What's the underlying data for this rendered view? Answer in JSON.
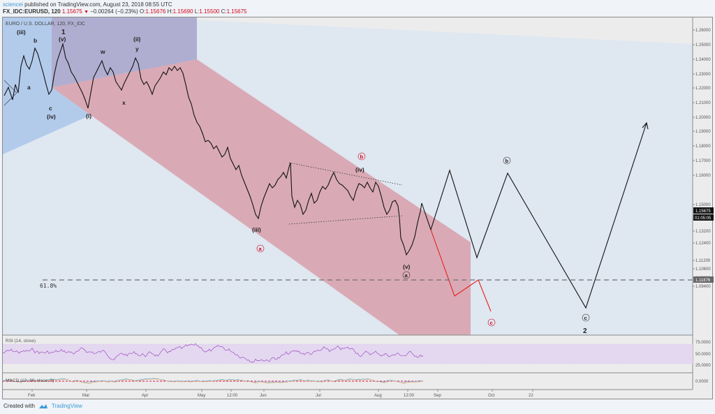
{
  "header": {
    "author": "sciencei",
    "published_text": "published on TradingView.com, August 23, 2018 08:55 UTC",
    "symbol": "FX_IDC:EURUSD, 120",
    "last": "1.15675",
    "change_icon": "triangle-down-icon",
    "change": "−0.00264 (−0.23%)",
    "o_label": "O:",
    "o": "1.15676",
    "h_label": "H:",
    "h": "1.15690",
    "l_label": "L:",
    "l": "1.15500",
    "c_label": "C:",
    "c": "1.15675"
  },
  "chart": {
    "title": "EURO / U.S. DOLLAR, 120, FX_IDC",
    "price_label": "1.15675",
    "countdown_label": "01:05:05",
    "fib_label": "1.11876",
    "fib_text": "61.8%",
    "rsi_label": "RSI (14, close)",
    "macd_label": "MACD (12, 26, close, 9)"
  },
  "footer": {
    "created_with": "Created with",
    "brand": "TradingView",
    "logo_icon": "tradingview-cloud-icon"
  },
  "colors": {
    "down": "#d0021b",
    "accent": "#3a9ad9",
    "blue_zone": "#b3cbeb",
    "red_channel": "#d9aab5",
    "rsi_band": "#e4d7f0",
    "rsi_line": "#9c4fbf",
    "projection_red": "#e8201c"
  },
  "chart_data": {
    "type": "line",
    "title": "EURO / U.S. DOLLAR, 120, FX_IDC",
    "xlabel": "",
    "ylabel": "Price",
    "ylim": [
      1.088,
      1.266
    ],
    "grid": false,
    "price_axis_ticks": [
      "1.26000",
      "1.25000",
      "1.24000",
      "1.23000",
      "1.22000",
      "1.21000",
      "1.20000",
      "1.19000",
      "1.18000",
      "1.17000",
      "1.16000",
      "1.15000",
      "1.14000",
      "1.13200",
      "1.12400",
      "1.11200",
      "1.10600",
      "1.10000",
      "1.09400"
    ],
    "time_axis_ticks": [
      "Feb",
      "Mar",
      "Apr",
      "May",
      "12:00",
      "Jun",
      "Jul",
      "Aug",
      "12:00",
      "Sep",
      "Oct",
      "22"
    ],
    "rsi_axis_ticks": [
      "75.0000",
      "50.0000",
      "25.0000"
    ],
    "macd_axis_ticks": [
      "0.0000"
    ],
    "x": [
      "Jan-20",
      "Feb-01",
      "Feb-10",
      "Feb-16",
      "Mar-01",
      "Mar-10",
      "Mar-20",
      "Mar-27",
      "Apr-10",
      "Apr-20",
      "May-01",
      "May-15",
      "May-29",
      "Jun-07",
      "Jun-21",
      "Jul-09",
      "Jul-31",
      "Aug-15",
      "Aug-23"
    ],
    "series": [
      {
        "name": "EURUSD close (approx.)",
        "values": [
          1.228,
          1.25,
          1.22,
          1.255,
          1.215,
          1.245,
          1.226,
          1.247,
          1.232,
          1.24,
          1.205,
          1.18,
          1.151,
          1.185,
          1.155,
          1.18,
          1.164,
          1.13,
          1.157
        ]
      },
      {
        "name": "Projection (black)",
        "values": [
          1.157,
          1.147,
          1.18,
          1.122,
          1.178,
          1.104,
          1.211
        ]
      },
      {
        "name": "Alternate projection (red)",
        "values": [
          1.147,
          1.111,
          1.119,
          1.104
        ]
      }
    ],
    "levels": [
      {
        "label": "61.8%",
        "value": 1.11876,
        "style": "dashed"
      }
    ],
    "annotations": [
      "(iii)",
      "b",
      "a",
      "c",
      "(iv)",
      "1",
      "(v)",
      "(i)",
      "w",
      "x",
      "(ii)",
      "y",
      "(iii)",
      "(iv)",
      "(v)",
      "a (circled)",
      "a (circled red)",
      "b (circled red)",
      "b (circled)",
      "c (circled red)",
      "c (circled)",
      "2"
    ],
    "last_price": 1.15675
  }
}
